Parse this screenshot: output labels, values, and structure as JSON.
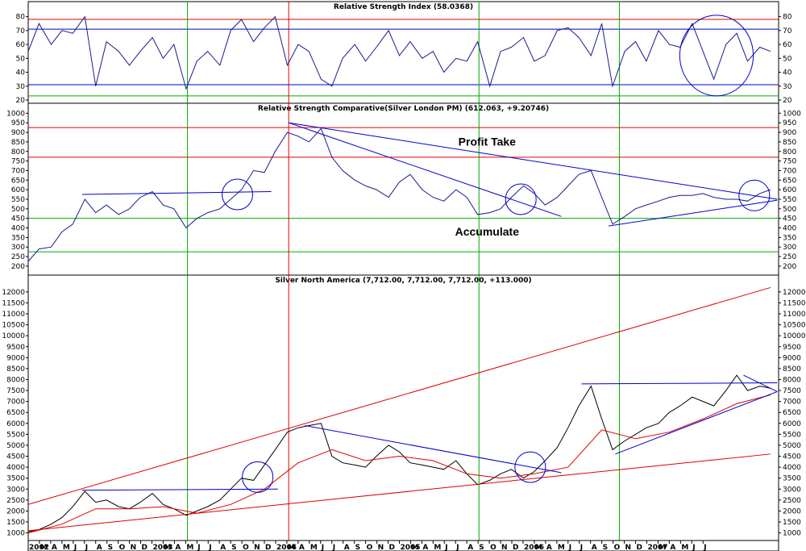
{
  "chart_data": [
    {
      "panel": "rsi",
      "type": "line",
      "title": "Relative Strength Index (58.0368)",
      "ylim": [
        20,
        85
      ],
      "yticks": [
        20,
        30,
        40,
        50,
        60,
        70,
        80
      ],
      "hlines": [
        {
          "value": 78,
          "color": "#e00000"
        },
        {
          "value": 71,
          "color": "#0000cc"
        },
        {
          "value": 31,
          "color": "#0000cc"
        },
        {
          "value": 23,
          "color": "#00aa00"
        }
      ],
      "series": [
        {
          "x": [
            2002.0,
            2002.08,
            2002.17,
            2002.25,
            2002.33,
            2002.42,
            2002.5,
            2002.58,
            2002.67,
            2002.75,
            2002.83,
            2002.92,
            2003.0,
            2003.08,
            2003.17,
            2003.25,
            2003.33,
            2003.42,
            2003.5,
            2003.58,
            2003.67,
            2003.75,
            2003.83,
            2003.92,
            2004.0,
            2004.08,
            2004.17,
            2004.25,
            2004.33,
            2004.42,
            2004.5,
            2004.58,
            2004.67,
            2004.75,
            2004.83,
            2004.92,
            2005.0,
            2005.08,
            2005.17,
            2005.25,
            2005.33,
            2005.42,
            2005.5,
            2005.58,
            2005.67,
            2005.75,
            2005.83,
            2005.92,
            2006.0,
            2006.08,
            2006.17,
            2006.25,
            2006.33,
            2006.42,
            2006.5,
            2006.58,
            2006.67,
            2006.75,
            2006.83,
            2006.92,
            2007.0,
            2007.08,
            2007.17,
            2007.25,
            2007.33,
            2007.42,
            2007.5
          ],
          "y": [
            55,
            75,
            60,
            70,
            68,
            80,
            30,
            62,
            55,
            45,
            55,
            65,
            50,
            60,
            28,
            48,
            55,
            45,
            70,
            78,
            62,
            72,
            80,
            45,
            60,
            55,
            35,
            30,
            50,
            60,
            48,
            58,
            70,
            52,
            62,
            50,
            55,
            40,
            50,
            48,
            62,
            30,
            55,
            58,
            65,
            48,
            52,
            70,
            72,
            65,
            52,
            75,
            30,
            55,
            62,
            48,
            70,
            60,
            58,
            75,
            55,
            35,
            60,
            68,
            48,
            58,
            55
          ]
        }
      ],
      "circles": [
        {
          "x": 2007.1,
          "y": 52
        }
      ]
    },
    {
      "panel": "rsc",
      "type": "line",
      "title": "Relative Strength Comparative(Silver London PM) (612.063, +9.20746)",
      "ylim": [
        170,
        1010
      ],
      "yticks": [
        200,
        250,
        300,
        350,
        400,
        450,
        500,
        550,
        600,
        650,
        700,
        750,
        800,
        850,
        900,
        950,
        1000
      ],
      "hlines": [
        {
          "value": 925,
          "color": "#e00000"
        },
        {
          "value": 770,
          "color": "#e00000"
        },
        {
          "value": 450,
          "color": "#00aa00"
        },
        {
          "value": 275,
          "color": "#00aa00"
        }
      ],
      "annotations": [
        {
          "text": "Profit Take",
          "x": 2005.4,
          "y": 830
        },
        {
          "text": "Accumulate",
          "x": 2005.4,
          "y": 360
        }
      ],
      "series": [
        {
          "x": [
            2002.0,
            2002.08,
            2002.17,
            2002.25,
            2002.33,
            2002.42,
            2002.5,
            2002.58,
            2002.67,
            2002.75,
            2002.83,
            2002.92,
            2003.0,
            2003.08,
            2003.17,
            2003.25,
            2003.33,
            2003.42,
            2003.5,
            2003.58,
            2003.67,
            2003.75,
            2003.83,
            2003.92,
            2004.0,
            2004.08,
            2004.17,
            2004.25,
            2004.33,
            2004.42,
            2004.5,
            2004.58,
            2004.67,
            2004.75,
            2004.83,
            2004.92,
            2005.0,
            2005.08,
            2005.17,
            2005.25,
            2005.33,
            2005.42,
            2005.5,
            2005.58,
            2005.67,
            2005.75,
            2005.83,
            2005.92,
            2006.0,
            2006.08,
            2006.17,
            2006.25,
            2006.33,
            2006.42,
            2006.5,
            2006.58,
            2006.67,
            2006.75,
            2006.83,
            2006.92,
            2007.0,
            2007.08,
            2007.17,
            2007.25,
            2007.33,
            2007.42,
            2007.5
          ],
          "y": [
            225,
            290,
            300,
            380,
            420,
            550,
            480,
            520,
            470,
            500,
            560,
            590,
            520,
            500,
            400,
            450,
            480,
            500,
            550,
            600,
            700,
            690,
            800,
            900,
            880,
            850,
            920,
            770,
            700,
            650,
            620,
            600,
            560,
            640,
            680,
            600,
            560,
            540,
            600,
            560,
            470,
            480,
            500,
            560,
            620,
            580,
            520,
            560,
            620,
            680,
            700,
            560,
            420,
            460,
            500,
            520,
            540,
            560,
            570,
            570,
            580,
            560,
            550,
            550,
            540,
            580,
            600
          ]
        }
      ],
      "trendlines": [
        {
          "x": [
            2002.4,
            2003.8
          ],
          "y": [
            575,
            590
          ],
          "color": "#0000cc"
        },
        {
          "x": [
            2003.93,
            2007.55
          ],
          "y": [
            950,
            550
          ],
          "color": "#0000cc"
        },
        {
          "x": [
            2003.93,
            2005.95
          ],
          "y": [
            950,
            460
          ],
          "color": "#0000cc"
        },
        {
          "x": [
            2006.3,
            2007.55
          ],
          "y": [
            410,
            545
          ],
          "color": "#0000cc"
        }
      ],
      "circles": [
        {
          "x": 2003.55,
          "y": 575
        },
        {
          "x": 2005.65,
          "y": 550
        },
        {
          "x": 2007.38,
          "y": 570
        }
      ]
    },
    {
      "panel": "price",
      "type": "line",
      "title": "Silver North America (7,712.00, 7,712.00, 7,712.00, +113.000)",
      "ylim": [
        800,
        12400
      ],
      "yticks": [
        1000,
        1500,
        2000,
        2500,
        3000,
        3500,
        4000,
        4500,
        5000,
        5500,
        6000,
        6500,
        7000,
        7500,
        8000,
        8500,
        9000,
        9500,
        10000,
        10500,
        11000,
        11500,
        12000
      ],
      "series": [
        {
          "name": "",
          "x": [
            2002.0,
            2002.08,
            2002.17,
            2002.25,
            2002.33,
            2002.42,
            2002.5,
            2002.58,
            2002.67,
            2002.75,
            2002.83,
            2002.92,
            2003.0,
            2003.08,
            2003.17,
            2003.25,
            2003.33,
            2003.42,
            2003.5,
            2003.58,
            2003.67,
            2003.75,
            2003.83,
            2003.92,
            2004.0,
            2004.08,
            2004.17,
            2004.25,
            2004.33,
            2004.42,
            2004.5,
            2004.58,
            2004.67,
            2004.75,
            2004.83,
            2004.92,
            2005.0,
            2005.08,
            2005.17,
            2005.25,
            2005.33,
            2005.42,
            2005.5,
            2005.58,
            2005.67,
            2005.75,
            2005.83,
            2005.92,
            2006.0,
            2006.08,
            2006.17,
            2006.25,
            2006.33,
            2006.42,
            2006.5,
            2006.58,
            2006.67,
            2006.75,
            2006.83,
            2006.92,
            2007.0,
            2007.08,
            2007.17,
            2007.25,
            2007.33,
            2007.42,
            2007.5
          ],
          "y": [
            1050,
            1150,
            1400,
            1700,
            2200,
            2900,
            2400,
            2500,
            2200,
            2100,
            2400,
            2800,
            2300,
            2100,
            1800,
            2000,
            2200,
            2500,
            3000,
            3500,
            3400,
            4100,
            4800,
            5600,
            5800,
            5900,
            6000,
            4500,
            4200,
            4100,
            4000,
            4500,
            5000,
            4700,
            4200,
            4100,
            4000,
            3900,
            4300,
            3700,
            3200,
            3400,
            3700,
            3900,
            3500,
            3800,
            4300,
            4900,
            5800,
            6800,
            7700,
            6200,
            4800,
            5200,
            5500,
            5800,
            6000,
            6500,
            6800,
            7200,
            7000,
            6800,
            7500,
            8200,
            7500,
            7700,
            7600
          ],
          "color": "#000000"
        },
        {
          "name": "",
          "x": [
            2002.0,
            2002.25,
            2002.5,
            2002.75,
            2003.0,
            2003.25,
            2003.5,
            2003.75,
            2004.0,
            2004.25,
            2004.5,
            2004.75,
            2005.0,
            2005.25,
            2005.5,
            2005.75,
            2006.0,
            2006.25,
            2006.5,
            2006.75,
            2007.0,
            2007.25,
            2007.5
          ],
          "y": [
            1000,
            1400,
            2100,
            2100,
            2200,
            1900,
            2300,
            3000,
            4200,
            4800,
            4300,
            4500,
            4300,
            3700,
            3500,
            3700,
            4000,
            5700,
            5300,
            5600,
            6200,
            6900,
            7300
          ],
          "color": "#e00000"
        }
      ],
      "trendlines": [
        {
          "x": [
            2002.0,
            2007.5
          ],
          "y": [
            2300,
            12200
          ],
          "color": "#e00000"
        },
        {
          "x": [
            2002.0,
            2007.5
          ],
          "y": [
            1100,
            4600
          ],
          "color": "#e00000"
        },
        {
          "x": [
            2002.4,
            2003.85
          ],
          "y": [
            2950,
            3000
          ],
          "color": "#0000cc"
        },
        {
          "x": [
            2004.05,
            2005.95
          ],
          "y": [
            5900,
            3750
          ],
          "color": "#0000cc"
        },
        {
          "x": [
            2006.1,
            2007.55
          ],
          "y": [
            7800,
            7850
          ],
          "color": "#0000cc"
        },
        {
          "x": [
            2006.35,
            2007.55
          ],
          "y": [
            4600,
            7450
          ],
          "color": "#0000cc"
        },
        {
          "x": [
            2007.3,
            2007.55
          ],
          "y": [
            8200,
            7450
          ],
          "color": "#0000cc"
        }
      ],
      "circles": [
        {
          "x": 2003.7,
          "y": 3550
        },
        {
          "x": 2005.72,
          "y": 4000
        }
      ]
    }
  ],
  "x_axis": {
    "year_start": 2002.0,
    "year_end": 2007.56,
    "labels": [
      "2002",
      "M",
      "A",
      "M",
      "J",
      "J",
      "A",
      "S",
      "O",
      "N",
      "D",
      "2003",
      "M",
      "A",
      "M",
      "J",
      "J",
      "A",
      "S",
      "O",
      "N",
      "D",
      "2004",
      "M",
      "A",
      "M",
      "J",
      "J",
      "A",
      "S",
      "O",
      "N",
      "D",
      "2005",
      "M",
      "A",
      "M",
      "J",
      "J",
      "A",
      "S",
      "O",
      "N",
      "D",
      "2006",
      "M",
      "A",
      "M",
      "J",
      "J",
      "A",
      "S",
      "O",
      "N",
      "D",
      "2007",
      "M",
      "A",
      "M",
      "J",
      "J"
    ],
    "vlines": [
      {
        "x": 2003.18,
        "color": "#00aa00"
      },
      {
        "x": 2003.93,
        "color": "#e00000"
      },
      {
        "x": 2005.34,
        "color": "#00aa00"
      },
      {
        "x": 2006.38,
        "color": "#00aa00"
      }
    ]
  }
}
